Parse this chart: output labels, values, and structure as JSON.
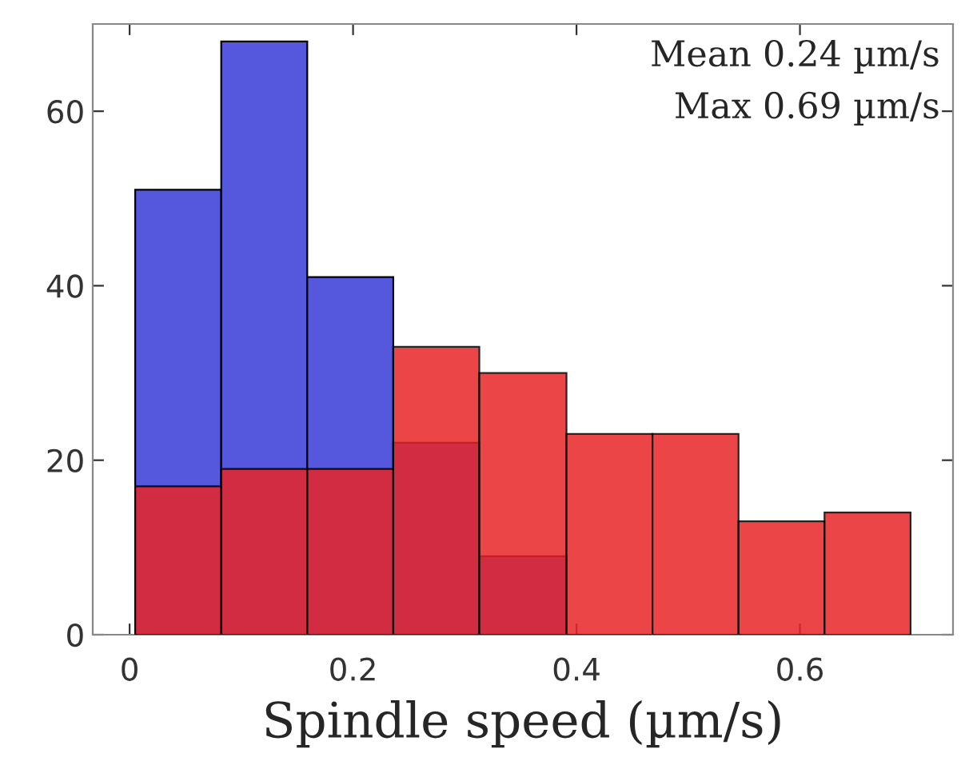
{
  "chart_data": {
    "type": "histogram",
    "xlabel": "Spindle speed (µm/s)",
    "annotations": [
      "Mean 0.24 µm/s",
      "Max 0.69 µm/s"
    ],
    "bins": [
      0.005,
      0.082,
      0.159,
      0.236,
      0.313,
      0.391,
      0.468,
      0.545,
      0.622,
      0.699
    ],
    "series": [
      {
        "color": "#5557dd",
        "values": [
          51,
          68,
          41,
          22,
          9,
          0,
          0,
          0,
          0
        ]
      },
      {
        "color": "#e82528",
        "values": [
          17,
          19,
          19,
          33,
          30,
          23,
          23,
          13,
          14
        ]
      }
    ],
    "xlim": [
      -0.033,
      0.737
    ],
    "ylim": [
      0,
      70
    ],
    "xticks": [
      0,
      0.2,
      0.4,
      0.6
    ],
    "yticks": [
      0,
      20,
      40,
      60
    ],
    "grid": false,
    "legend": false
  }
}
